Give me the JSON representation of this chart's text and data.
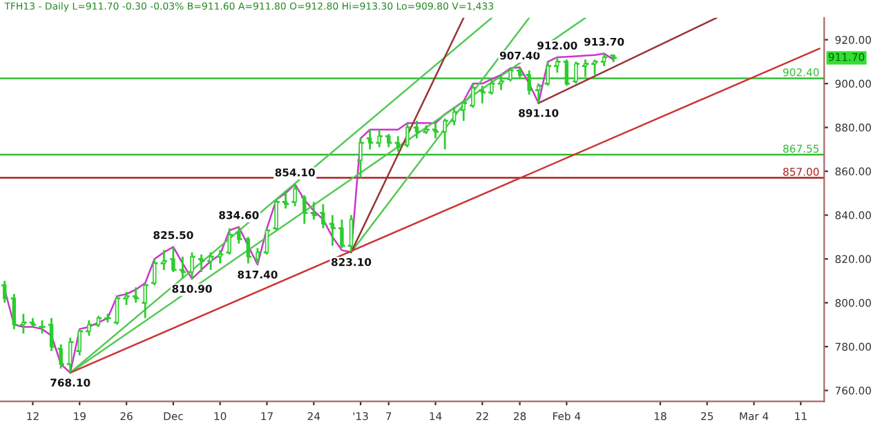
{
  "chart_data": {
    "type": "candlestick",
    "title": "TFH13 - Daily L=911.70 -0.30 -0.03% B=911.60 A=911.80 O=912.80 Hi=913.30 Lo=909.80 V=1,433",
    "categories": [
      null,
      null,
      null,
      "12",
      null,
      null,
      null,
      null,
      "19",
      null,
      null,
      null,
      null,
      "26",
      null,
      null,
      null,
      null,
      "Dec",
      null,
      null,
      null,
      null,
      "10",
      null,
      null,
      null,
      null,
      "17",
      null,
      null,
      null,
      null,
      "24",
      null,
      null,
      null,
      null,
      "'13",
      null,
      null,
      "7",
      null,
      null,
      null,
      null,
      "14",
      null,
      null,
      null,
      null,
      "22",
      null,
      null,
      null,
      "28",
      null,
      null,
      null,
      null,
      "Feb 4",
      null,
      null,
      null,
      null,
      null,
      null,
      null,
      null,
      null,
      "18",
      null,
      null,
      null,
      null,
      "25",
      null,
      null,
      null,
      null,
      "Mar 4",
      null,
      null,
      null,
      null,
      "11",
      null,
      null
    ],
    "series": [
      {
        "type": "candlestick",
        "color": "#2ecc2e",
        "ohlc": [
          [
            808,
            810,
            800,
            802
          ],
          [
            802,
            804,
            788,
            790
          ],
          [
            790,
            795,
            786,
            791
          ],
          [
            791,
            793,
            789,
            790
          ],
          [
            789,
            792,
            786,
            789
          ],
          [
            790,
            793,
            778,
            780
          ],
          [
            779,
            781,
            770,
            772
          ],
          [
            772,
            784,
            768.1,
            782
          ],
          [
            778,
            788,
            776,
            787
          ],
          [
            787,
            792,
            785,
            790
          ],
          [
            790,
            794,
            789,
            793
          ],
          [
            793,
            795,
            791,
            793
          ],
          [
            791,
            803,
            790,
            802
          ],
          [
            802,
            805,
            799,
            803
          ],
          [
            803,
            807,
            800,
            802
          ],
          [
            800,
            809,
            793,
            808
          ],
          [
            809,
            820,
            808,
            818
          ],
          [
            818,
            824,
            815,
            819
          ],
          [
            820,
            825.5,
            814,
            815
          ],
          [
            815,
            821,
            811,
            814
          ],
          [
            814,
            823,
            810.9,
            821
          ],
          [
            820,
            822,
            814,
            819
          ],
          [
            819,
            823,
            815,
            821
          ],
          [
            821,
            824,
            818,
            822
          ],
          [
            823,
            834,
            822,
            831
          ],
          [
            832,
            834.6,
            827,
            829
          ],
          [
            829,
            830,
            818,
            821
          ],
          [
            820,
            825,
            817.4,
            823
          ],
          [
            823,
            834,
            822,
            833
          ],
          [
            834,
            847,
            833,
            846
          ],
          [
            846,
            851,
            843,
            845
          ],
          [
            846,
            854.1,
            844,
            852
          ],
          [
            848,
            849,
            836,
            841
          ],
          [
            841,
            846,
            838,
            840
          ],
          [
            841,
            845,
            834,
            836
          ],
          [
            836,
            840,
            826,
            834
          ],
          [
            834,
            838,
            825,
            826
          ],
          [
            826,
            840,
            823.1,
            838
          ],
          [
            865,
            875,
            857,
            873
          ],
          [
            875,
            879,
            870,
            873
          ],
          [
            873,
            879,
            871,
            876
          ],
          [
            876,
            877,
            871,
            873
          ],
          [
            873,
            876,
            869,
            871
          ],
          [
            872,
            882,
            871,
            880
          ],
          [
            880,
            883,
            875,
            878
          ],
          [
            878,
            881,
            877,
            879
          ],
          [
            879,
            882,
            875,
            878
          ],
          [
            878,
            884,
            870,
            883
          ],
          [
            883,
            889,
            881,
            887
          ],
          [
            888,
            892,
            883,
            891
          ],
          [
            890,
            900,
            889,
            898
          ],
          [
            897,
            899,
            891,
            896
          ],
          [
            896,
            902,
            895,
            900
          ],
          [
            900,
            904,
            897,
            901
          ],
          [
            902,
            907,
            901,
            906
          ],
          [
            906,
            907.4,
            902,
            904
          ],
          [
            904,
            906,
            895,
            897
          ],
          [
            897,
            900,
            891.1,
            899
          ],
          [
            900,
            910,
            899,
            908
          ],
          [
            908,
            912,
            905,
            910
          ],
          [
            910,
            911,
            899,
            900
          ],
          [
            901,
            910,
            900,
            909
          ],
          [
            908,
            911,
            903,
            909
          ],
          [
            909,
            911,
            904,
            910
          ],
          [
            910,
            913.7,
            908,
            912
          ],
          [
            912.8,
            913.3,
            909.8,
            911.7
          ],
          null,
          null,
          null,
          null,
          null,
          null,
          null,
          null,
          null,
          null,
          null,
          null,
          null,
          null,
          null,
          null,
          null,
          null,
          null,
          null,
          null,
          null
        ]
      },
      {
        "type": "line",
        "color": "#cc33cc",
        "values": [
          806,
          790,
          789,
          789,
          788,
          785,
          772,
          768.1,
          788,
          789,
          791,
          793,
          803,
          804,
          806,
          809,
          820,
          823,
          825.5,
          818,
          810.9,
          815,
          819,
          822,
          833,
          834.6,
          826,
          817.4,
          834,
          847,
          850,
          854.1,
          847,
          842,
          838,
          830,
          824,
          823.1,
          875,
          879,
          879,
          879,
          879,
          882,
          882,
          882,
          882,
          886,
          889,
          892,
          900,
          900,
          902,
          904,
          907,
          907.4,
          900,
          891.1,
          910,
          912,
          912.2,
          912.5,
          912.8,
          913,
          913.7,
          911,
          null,
          null,
          null,
          null,
          null,
          null,
          null,
          null,
          null,
          null,
          null,
          null,
          null,
          null,
          null,
          null,
          null,
          null,
          null,
          null,
          null,
          null
        ],
        "value_labels": [
          null,
          null,
          null,
          null,
          null,
          null,
          null,
          "768.10",
          null,
          null,
          null,
          null,
          null,
          null,
          null,
          null,
          null,
          null,
          "825.50",
          null,
          "810.90",
          null,
          null,
          null,
          null,
          "834.60",
          null,
          "817.40",
          null,
          null,
          null,
          "854.10",
          null,
          null,
          null,
          null,
          null,
          "823.10",
          null,
          null,
          null,
          null,
          null,
          null,
          null,
          null,
          null,
          null,
          null,
          null,
          null,
          null,
          null,
          null,
          null,
          "907.40",
          null,
          "891.10",
          null,
          "912.00",
          null,
          null,
          null,
          null,
          "913.70",
          null,
          null,
          null,
          null,
          null,
          null,
          null,
          null,
          null,
          null,
          null,
          null,
          null,
          null,
          null,
          null,
          null,
          null,
          null,
          null,
          null,
          null,
          null
        ]
      },
      {
        "type": "line",
        "color": "#55c855",
        "values": [
          null,
          null,
          null,
          null,
          null,
          null,
          null,
          768.1,
          null,
          null,
          null,
          null,
          null,
          null,
          null,
          null,
          null,
          null,
          null,
          null,
          null,
          null,
          null,
          null,
          null,
          null,
          null,
          null,
          null,
          null,
          null,
          null,
          null,
          null,
          null,
          null,
          null,
          null,
          null,
          null,
          null,
          null,
          null,
          null,
          null,
          null,
          null,
          null,
          null,
          null,
          null,
          null,
          930,
          null,
          null,
          null,
          null,
          null,
          null,
          null,
          null,
          null,
          null,
          null,
          null,
          null,
          null,
          null,
          null,
          null,
          null,
          null,
          null,
          null,
          null,
          null,
          null,
          null,
          null,
          null,
          null,
          null,
          null,
          null,
          null,
          null,
          null,
          null
        ]
      },
      {
        "type": "line",
        "color": "#55c855",
        "values": [
          null,
          null,
          null,
          null,
          null,
          null,
          null,
          768.1,
          null,
          null,
          null,
          null,
          null,
          null,
          null,
          null,
          null,
          null,
          null,
          null,
          null,
          null,
          null,
          null,
          null,
          null,
          null,
          null,
          null,
          null,
          null,
          null,
          null,
          null,
          null,
          null,
          null,
          null,
          null,
          null,
          null,
          null,
          null,
          null,
          null,
          null,
          null,
          null,
          null,
          null,
          null,
          null,
          null,
          null,
          null,
          null,
          null,
          null,
          null,
          null,
          null,
          null,
          930,
          null,
          null,
          null,
          null,
          null,
          null,
          null,
          null,
          null,
          null,
          null,
          null,
          null,
          null,
          null,
          null,
          null,
          null,
          null,
          null,
          null,
          null,
          null,
          null,
          null
        ]
      },
      {
        "type": "line",
        "color": "#55c855",
        "values": [
          null,
          null,
          null,
          null,
          null,
          null,
          null,
          null,
          null,
          null,
          null,
          null,
          null,
          null,
          null,
          null,
          null,
          null,
          null,
          null,
          null,
          null,
          null,
          null,
          null,
          null,
          null,
          null,
          null,
          null,
          null,
          null,
          null,
          null,
          null,
          null,
          null,
          823.1,
          null,
          null,
          null,
          null,
          null,
          null,
          null,
          null,
          null,
          null,
          null,
          null,
          null,
          null,
          null,
          null,
          null,
          null,
          930,
          null,
          null,
          null,
          null,
          null,
          null,
          null,
          null,
          null,
          null,
          null,
          null,
          null,
          null,
          null,
          null,
          null,
          null,
          null,
          null,
          null,
          null,
          null,
          null,
          null,
          null,
          null,
          null,
          null,
          null,
          null
        ]
      },
      {
        "type": "line",
        "color": "#993333",
        "values": [
          null,
          null,
          null,
          null,
          null,
          null,
          null,
          null,
          null,
          null,
          null,
          null,
          null,
          null,
          null,
          null,
          null,
          null,
          null,
          null,
          null,
          null,
          null,
          null,
          null,
          null,
          null,
          null,
          null,
          null,
          null,
          null,
          null,
          null,
          null,
          null,
          null,
          823.1,
          null,
          null,
          null,
          null,
          null,
          null,
          null,
          null,
          null,
          null,
          null,
          930,
          null,
          null,
          null,
          null,
          null,
          null,
          null,
          null,
          null,
          null,
          null,
          null,
          null,
          null,
          null,
          null,
          null,
          null,
          null,
          null,
          null,
          null,
          null,
          null,
          null,
          null,
          null,
          null,
          null,
          null,
          null,
          null,
          null,
          null,
          null,
          null,
          null,
          null
        ]
      },
      {
        "type": "line",
        "color": "#cc3333",
        "values": [
          null,
          null,
          null,
          null,
          null,
          null,
          null,
          768.1,
          null,
          null,
          null,
          null,
          null,
          null,
          null,
          null,
          null,
          null,
          null,
          null,
          null,
          null,
          null,
          null,
          null,
          null,
          null,
          null,
          null,
          null,
          null,
          null,
          null,
          null,
          null,
          null,
          null,
          null,
          null,
          null,
          null,
          null,
          null,
          null,
          null,
          null,
          null,
          null,
          null,
          null,
          null,
          null,
          null,
          null,
          null,
          null,
          null,
          null,
          null,
          null,
          null,
          null,
          null,
          null,
          null,
          null,
          null,
          null,
          null,
          null,
          null,
          null,
          null,
          null,
          null,
          null,
          null,
          null,
          null,
          null,
          null,
          null,
          null,
          null,
          null,
          null,
          null,
          916
        ]
      },
      {
        "type": "line",
        "color": "#993333",
        "values": [
          null,
          null,
          null,
          null,
          null,
          null,
          null,
          null,
          null,
          null,
          null,
          null,
          null,
          null,
          null,
          null,
          null,
          null,
          null,
          null,
          null,
          null,
          null,
          null,
          null,
          null,
          null,
          null,
          null,
          null,
          null,
          null,
          null,
          null,
          null,
          null,
          null,
          null,
          null,
          null,
          null,
          null,
          null,
          null,
          null,
          null,
          null,
          null,
          null,
          null,
          null,
          null,
          null,
          null,
          null,
          null,
          null,
          891.1,
          null,
          null,
          null,
          null,
          null,
          null,
          null,
          null,
          null,
          null,
          null,
          null,
          null,
          null,
          null,
          null,
          null,
          null,
          930,
          null,
          null,
          null,
          null,
          null,
          null,
          null,
          null,
          null,
          null,
          null
        ]
      }
    ],
    "ylim": [
      755,
      930
    ],
    "yticks": [
      {
        "value": 760,
        "label": "760.00"
      },
      {
        "value": 780,
        "label": "780.00"
      },
      {
        "value": 800,
        "label": "800.00"
      },
      {
        "value": 820,
        "label": "820.00"
      },
      {
        "value": 840,
        "label": "840.00"
      },
      {
        "value": 860,
        "label": "860.00"
      },
      {
        "value": 880,
        "label": "880.00"
      },
      {
        "value": 900,
        "label": "900.00"
      },
      {
        "value": 920,
        "label": "920.00"
      }
    ],
    "ref_lines": [
      {
        "axis": "y",
        "value": 902.4,
        "label": "902.40",
        "color": "#33bb33"
      },
      {
        "axis": "y",
        "value": 867.55,
        "label": "867.55",
        "color": "#33bb33"
      },
      {
        "axis": "y",
        "value": 857.0,
        "label": "857.00",
        "color": "#aa2222"
      }
    ],
    "annotations": [
      {
        "text": "911.70",
        "y": 911.7
      }
    ]
  }
}
